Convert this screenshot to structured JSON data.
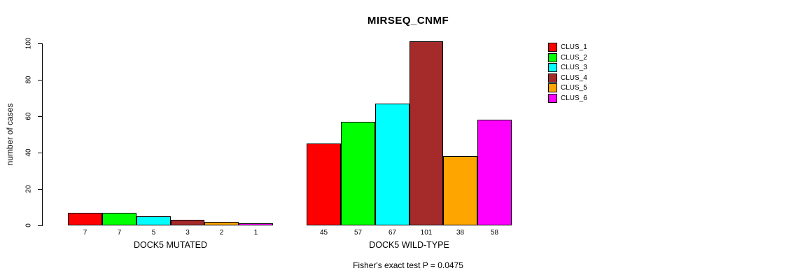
{
  "title": "MIRSEQ_CNMF",
  "footer": "Fisher's exact test P = 0.0475",
  "chart_data": {
    "type": "bar",
    "title": "MIRSEQ_CNMF",
    "xlabel": "",
    "ylabel": "number of cases",
    "ylim": [
      0,
      100
    ],
    "yticks": [
      0,
      20,
      40,
      60,
      80,
      100
    ],
    "grid": false,
    "legend_position": "right",
    "series": [
      {
        "name": "CLUS_1",
        "color": "#FF0000"
      },
      {
        "name": "CLUS_2",
        "color": "#00FF00"
      },
      {
        "name": "CLUS_3",
        "color": "#00FFFF"
      },
      {
        "name": "CLUS_4",
        "color": "#A52A2A"
      },
      {
        "name": "CLUS_5",
        "color": "#FFA500"
      },
      {
        "name": "CLUS_6",
        "color": "#FF00FF"
      }
    ],
    "groups": [
      {
        "label": "DOCK5 MUTATED",
        "values": [
          7,
          7,
          5,
          3,
          2,
          1
        ]
      },
      {
        "label": "DOCK5 WILD-TYPE",
        "values": [
          45,
          57,
          67,
          101,
          38,
          58
        ]
      }
    ],
    "annotation": "Fisher's exact test P = 0.0475"
  }
}
